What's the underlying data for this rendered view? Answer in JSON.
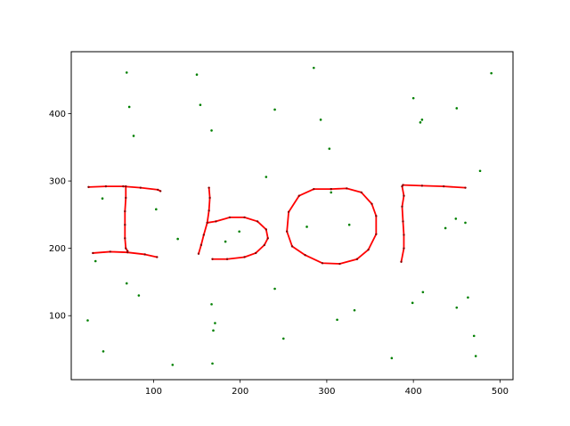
{
  "chart_data": {
    "type": "scatter",
    "title": "",
    "xlabel": "",
    "ylabel": "",
    "xlim": [
      5,
      515
    ],
    "ylim": [
      5,
      492
    ],
    "grid": false,
    "x_ticks": [
      100,
      200,
      300,
      400,
      500
    ],
    "y_ticks": [
      100,
      200,
      300,
      400
    ],
    "x_tick_labels": [
      "100",
      "200",
      "300",
      "400",
      "500"
    ],
    "y_tick_labels": [
      "100",
      "200",
      "300",
      "400"
    ],
    "colors": {
      "noise": "#008000",
      "strokes": "#ff0000",
      "stroke_points": "#8b0000"
    },
    "series": [
      {
        "role": "noise",
        "x": [
          69,
          150,
          285,
          490,
          154,
          72,
          400,
          450,
          240,
          167,
          293,
          410,
          408,
          77,
          303,
          477,
          230,
          305,
          41,
          103,
          326,
          183,
          449,
          460,
          437,
          277,
          199,
          128,
          33,
          69,
          411,
          83,
          399,
          463,
          240,
          167,
          450,
          332,
          24,
          312,
          171,
          169,
          470,
          42,
          472,
          250,
          375,
          122,
          168
        ],
        "y": [
          461,
          458,
          468,
          460,
          413,
          410,
          423,
          408,
          406,
          375,
          391,
          391,
          387,
          367,
          348,
          315,
          306,
          283,
          274,
          258,
          235,
          210,
          244,
          238,
          230,
          232,
          225,
          214,
          181,
          148,
          135,
          130,
          119,
          127,
          140,
          117,
          112,
          108,
          93,
          94,
          89,
          78,
          70,
          47,
          40,
          66,
          37,
          27,
          29
        ]
      },
      {
        "role": "stroke",
        "x": [
          25,
          45,
          65,
          85,
          105,
          108
        ],
        "y": [
          291,
          292,
          292,
          290,
          287,
          285
        ]
      },
      {
        "role": "stroke",
        "x": [
          68,
          68,
          67,
          67,
          67,
          68,
          70
        ],
        "y": [
          292,
          275,
          255,
          235,
          215,
          200,
          196
        ]
      },
      {
        "role": "stroke",
        "x": [
          30,
          50,
          70,
          90,
          104
        ],
        "y": [
          193,
          195,
          194,
          191,
          187
        ]
      },
      {
        "role": "stroke",
        "x": [
          164,
          165,
          164,
          162,
          158,
          155,
          152
        ],
        "y": [
          290,
          275,
          256,
          238,
          220,
          205,
          192
        ]
      },
      {
        "role": "stroke",
        "x": [
          162,
          172,
          188,
          205,
          220,
          230,
          232,
          228,
          218,
          205,
          185,
          168
        ],
        "y": [
          238,
          240,
          246,
          246,
          240,
          228,
          215,
          205,
          193,
          187,
          184,
          184
        ]
      },
      {
        "role": "stroke",
        "x": [
          305,
          323,
          340,
          352,
          357,
          357,
          348,
          335,
          315,
          295,
          275,
          260,
          254,
          256,
          268,
          285,
          305
        ],
        "y": [
          288,
          289,
          283,
          266,
          248,
          221,
          198,
          184,
          177,
          178,
          190,
          203,
          225,
          254,
          278,
          288,
          288
        ]
      },
      {
        "role": "stroke",
        "x": [
          387,
          389,
          387,
          388,
          389,
          389,
          386
        ],
        "y": [
          292,
          278,
          262,
          240,
          220,
          200,
          180
        ]
      },
      {
        "role": "stroke",
        "x": [
          388,
          410,
          435,
          460
        ],
        "y": [
          294,
          293,
          292,
          290
        ]
      }
    ]
  }
}
